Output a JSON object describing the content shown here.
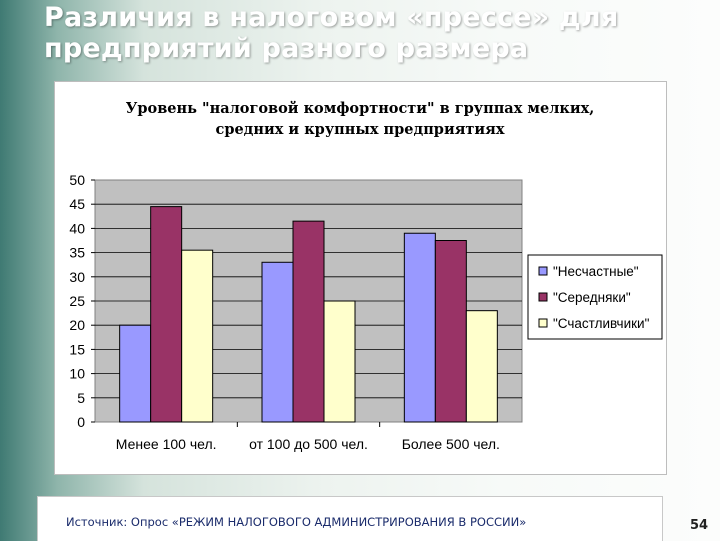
{
  "slide": {
    "title_line1": "Различия в налоговом «прессе» для",
    "title_line2": "предприятий разного размера",
    "source": "Источник: Опрос «РЕЖИМ НАЛОГОВОГО АДМИНИСТРИРОВАНИЯ В РОССИИ»",
    "page_number": "54"
  },
  "chart_data": {
    "type": "bar",
    "title_line1": "Уровень \"налоговой комфортности\" в группах мелких,",
    "title_line2": "средних и крупных предприятиях",
    "categories": [
      "Менее 100 чел.",
      "от 100 до 500 чел.",
      "Более 500 чел."
    ],
    "series": [
      {
        "name": "\"Несчастные\"",
        "values": [
          20,
          33,
          39
        ],
        "color": "#9999ff"
      },
      {
        "name": "\"Середняки\"",
        "values": [
          44.5,
          41.5,
          37.5
        ],
        "color": "#993366"
      },
      {
        "name": "\"Счастливчики\"",
        "values": [
          35.5,
          25,
          23
        ],
        "color": "#ffffcc"
      }
    ],
    "ylim": [
      0,
      50
    ],
    "yticks": [
      "0",
      "5",
      "10",
      "15",
      "20",
      "25",
      "30",
      "35",
      "40",
      "45",
      "50"
    ],
    "plot_background": "#c0c0c0",
    "grid": true,
    "legend_position": "right"
  }
}
